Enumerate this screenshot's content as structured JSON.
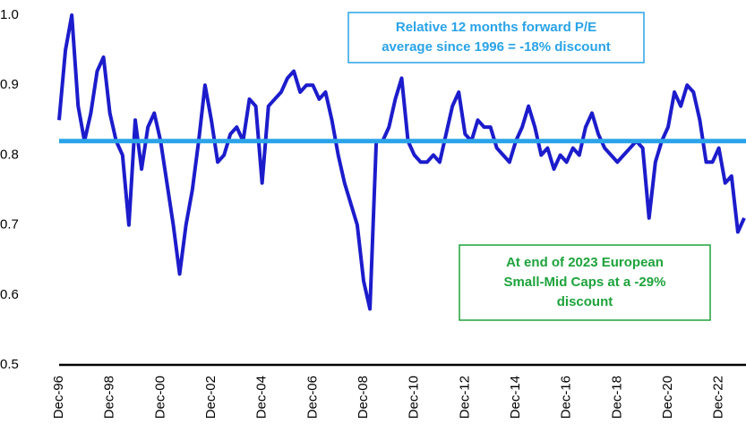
{
  "chart_data": {
    "type": "line",
    "categories": [
      "Dec-96",
      null,
      null,
      null,
      null,
      null,
      null,
      null,
      "Dec-98",
      null,
      null,
      null,
      null,
      null,
      null,
      null,
      "Dec-00",
      null,
      null,
      null,
      null,
      null,
      null,
      null,
      "Dec-02",
      null,
      null,
      null,
      null,
      null,
      null,
      null,
      "Dec-04",
      null,
      null,
      null,
      null,
      null,
      null,
      null,
      "Dec-06",
      null,
      null,
      null,
      null,
      null,
      null,
      null,
      "Dec-08",
      null,
      null,
      null,
      null,
      null,
      null,
      null,
      "Dec-10",
      null,
      null,
      null,
      null,
      null,
      null,
      null,
      "Dec-12",
      null,
      null,
      null,
      null,
      null,
      null,
      null,
      "Dec-14",
      null,
      null,
      null,
      null,
      null,
      null,
      null,
      "Dec-16",
      null,
      null,
      null,
      null,
      null,
      null,
      null,
      "Dec-18",
      null,
      null,
      null,
      null,
      null,
      null,
      null,
      "Dec-20",
      null,
      null,
      null,
      null,
      null,
      null,
      null,
      "Dec-22",
      null,
      null,
      null,
      null
    ],
    "series": [
      {
        "color": "#1c1ccc",
        "values": [
          0.85,
          0.95,
          1.0,
          0.87,
          0.82,
          0.86,
          0.92,
          0.94,
          0.86,
          0.82,
          0.8,
          0.7,
          0.85,
          0.78,
          0.84,
          0.86,
          0.82,
          0.76,
          0.7,
          0.63,
          0.7,
          0.75,
          0.82,
          0.9,
          0.85,
          0.79,
          0.8,
          0.83,
          0.84,
          0.82,
          0.88,
          0.87,
          0.76,
          0.87,
          0.88,
          0.89,
          0.91,
          0.92,
          0.89,
          0.9,
          0.9,
          0.88,
          0.89,
          0.85,
          0.8,
          0.76,
          0.73,
          0.7,
          0.62,
          0.58,
          0.82,
          0.82,
          0.84,
          0.88,
          0.91,
          0.82,
          0.8,
          0.79,
          0.79,
          0.8,
          0.79,
          0.83,
          0.87,
          0.89,
          0.83,
          0.82,
          0.85,
          0.84,
          0.84,
          0.81,
          0.8,
          0.79,
          0.82,
          0.84,
          0.87,
          0.84,
          0.8,
          0.81,
          0.78,
          0.8,
          0.79,
          0.81,
          0.8,
          0.84,
          0.86,
          0.83,
          0.81,
          0.8,
          0.79,
          0.8,
          0.81,
          0.82,
          0.81,
          0.71,
          0.79,
          0.82,
          0.84,
          0.89,
          0.87,
          0.9,
          0.89,
          0.85,
          0.79,
          0.79,
          0.81,
          0.76,
          0.77,
          0.69,
          0.71
        ]
      }
    ],
    "reference_line": {
      "value": 0.82,
      "color": "#2aa3e8"
    },
    "annotations": [
      {
        "lines": [
          "Relative 12 months forward P/E",
          "average since 1996 = -18% discount"
        ],
        "color": "#2aa3e8"
      },
      {
        "lines": [
          "At end of 2023 European",
          "Small-Mid Caps at a -29%",
          "discount"
        ],
        "color": "#1ea33c"
      }
    ],
    "ylim": [
      0.5,
      1.0
    ],
    "yticks": [
      0.5,
      0.6,
      0.7,
      0.8,
      0.9,
      {
        "value": 1.0,
        "label": "1.0"
      }
    ]
  }
}
